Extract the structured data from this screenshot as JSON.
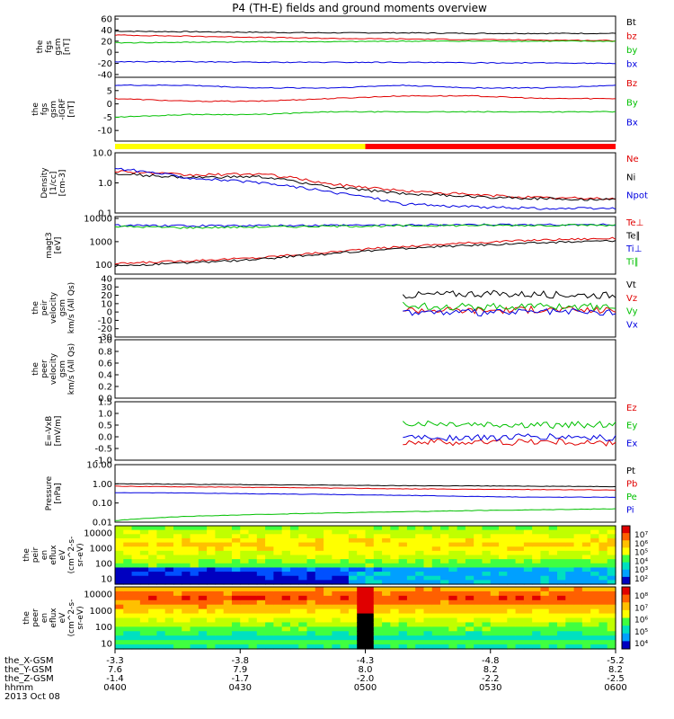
{
  "title": "P4 (TH-E) fields and ground moments overview",
  "chart_data": [
    {
      "type": "line",
      "ylabel": [
        "the",
        "fgs",
        "gsm",
        "[nT]"
      ],
      "ylim": [
        -45,
        65
      ],
      "yticks": [
        "60",
        "40",
        "20",
        "0",
        "-20",
        "-40"
      ],
      "ytick_values": [
        60,
        40,
        20,
        0,
        -20,
        -40
      ],
      "series": [
        {
          "name": "Bt",
          "color": "#000000",
          "values": [
            38,
            37,
            36,
            35,
            35,
            34,
            34,
            34
          ]
        },
        {
          "name": "bz",
          "color": "#e00000",
          "values": [
            31,
            29,
            27,
            25,
            24,
            23,
            22,
            21
          ]
        },
        {
          "name": "by",
          "color": "#00c000",
          "values": [
            17,
            18,
            19,
            19,
            20,
            20,
            20,
            20
          ]
        },
        {
          "name": "bx",
          "color": "#0000e0",
          "values": [
            -17,
            -17,
            -18,
            -18,
            -18,
            -19,
            -19,
            -20
          ]
        }
      ]
    },
    {
      "type": "line",
      "ylabel": [
        "the",
        "fgs",
        "gsm",
        "-IGRF",
        "[nT]"
      ],
      "ylim": [
        -14,
        10
      ],
      "yticks": [
        "5",
        "0",
        "-5",
        "-10"
      ],
      "ytick_values": [
        5,
        0,
        -5,
        -10
      ],
      "series": [
        {
          "name": "Bz",
          "color": "#e00000",
          "values": [
            2,
            1,
            1,
            2,
            3,
            3,
            2,
            2
          ]
        },
        {
          "name": "By",
          "color": "#00c000",
          "values": [
            -5,
            -4,
            -4,
            -3,
            -3,
            -3,
            -3,
            -3
          ]
        },
        {
          "name": "Bx",
          "color": "#0000e0",
          "values": [
            7,
            7,
            6,
            6,
            7,
            6,
            6,
            7
          ]
        }
      ]
    },
    {
      "type": "bar",
      "description_colors": [
        "#ffff00",
        "#ff0000"
      ],
      "segments": [
        {
          "from": "0400",
          "to": "0500",
          "color": "#ffff00"
        },
        {
          "from": "0500",
          "to": "0600",
          "color": "#ff0000"
        }
      ]
    },
    {
      "type": "line",
      "scale": "log",
      "ylabel": [
        "Density",
        "[1/cc]",
        "[cm-3]"
      ],
      "ylim": [
        0.1,
        10
      ],
      "yticks": [
        "10.0",
        "1.0",
        "0.1"
      ],
      "ytick_values": [
        10,
        1,
        0.1
      ],
      "series": [
        {
          "name": "Ne",
          "color": "#e00000",
          "values": [
            2.5,
            1.8,
            2.0,
            0.9,
            0.55,
            0.4,
            0.32,
            0.3
          ]
        },
        {
          "name": "Ni",
          "color": "#000000",
          "values": [
            2.0,
            1.5,
            1.6,
            0.7,
            0.45,
            0.35,
            0.3,
            0.28
          ]
        },
        {
          "name": "Npot",
          "color": "#0000e0",
          "values": [
            3.0,
            1.5,
            1.0,
            0.5,
            0.2,
            0.16,
            0.14,
            0.14
          ]
        }
      ]
    },
    {
      "type": "line",
      "scale": "log",
      "ylabel": [
        "magt3",
        "[eV]"
      ],
      "ylim": [
        40,
        12000
      ],
      "yticks": [
        "10000",
        "1000",
        "100"
      ],
      "ytick_values": [
        10000,
        1000,
        100
      ],
      "series": [
        {
          "name": "Te⊥",
          "color": "#e00000",
          "values": [
            110,
            150,
            200,
            350,
            600,
            900,
            1200,
            1400
          ]
        },
        {
          "name": "Te∥",
          "color": "#000000",
          "values": [
            90,
            120,
            170,
            300,
            500,
            700,
            900,
            1100
          ]
        },
        {
          "name": "Ti⊥",
          "color": "#0000e0",
          "values": [
            5000,
            4800,
            4900,
            5000,
            5200,
            5300,
            5400,
            5400
          ]
        },
        {
          "name": "Ti∥",
          "color": "#00c000",
          "values": [
            4500,
            4000,
            4300,
            4600,
            4800,
            5000,
            5100,
            5200
          ]
        }
      ]
    },
    {
      "type": "line",
      "ylabel": [
        "the",
        "peir",
        "velocity",
        "gsm",
        "km/s (All Qs)"
      ],
      "ylim": [
        -30,
        40
      ],
      "yticks": [
        "40",
        "30",
        "20",
        "10",
        "0",
        "-10",
        "-20",
        "-30"
      ],
      "ytick_values": [
        40,
        30,
        20,
        10,
        0,
        -10,
        -20,
        -30
      ],
      "series": [
        {
          "name": "Vt",
          "color": "#000000",
          "values": [
            null,
            null,
            null,
            null,
            20,
            22,
            21,
            20
          ]
        },
        {
          "name": "Vz",
          "color": "#e00000",
          "values": [
            null,
            null,
            null,
            null,
            3,
            2,
            3,
            2
          ]
        },
        {
          "name": "Vy",
          "color": "#00c000",
          "values": [
            null,
            null,
            null,
            null,
            8,
            6,
            7,
            6
          ]
        },
        {
          "name": "Vx",
          "color": "#0000e0",
          "values": [
            null,
            null,
            null,
            null,
            0,
            -1,
            0,
            -1
          ]
        }
      ]
    },
    {
      "type": "line",
      "ylabel": [
        "the",
        "peer",
        "velocity",
        "gsm",
        "km/s (All Qs)"
      ],
      "ylim": [
        0,
        1
      ],
      "yticks": [
        "1.0",
        "0.8",
        "0.6",
        "0.4",
        "0.2",
        "0.0"
      ],
      "ytick_values": [
        1.0,
        0.8,
        0.6,
        0.4,
        0.2,
        0.0
      ],
      "series": [
        {
          "name": "Vt",
          "color": "#000000",
          "values": []
        },
        {
          "name": "Vz",
          "color": "#e00000",
          "values": []
        },
        {
          "name": "Vy",
          "color": "#00c000",
          "values": []
        },
        {
          "name": "Vx",
          "color": "#0000e0",
          "values": []
        }
      ]
    },
    {
      "type": "line",
      "ylabel": [
        "E=-VxB",
        "[mV/m]"
      ],
      "ylim": [
        -1.0,
        1.5
      ],
      "yticks": [
        "1.5",
        "1.0",
        "0.5",
        "0.0",
        "-0.5",
        "-1.0"
      ],
      "ytick_values": [
        1.5,
        1.0,
        0.5,
        0.0,
        -0.5,
        -1.0
      ],
      "series": [
        {
          "name": "Ez",
          "color": "#e00000",
          "values": [
            null,
            null,
            null,
            null,
            -0.2,
            -0.25,
            -0.2,
            -0.3
          ]
        },
        {
          "name": "Ey",
          "color": "#00c000",
          "values": [
            null,
            null,
            null,
            null,
            0.6,
            0.55,
            0.5,
            0.55
          ]
        },
        {
          "name": "Ex",
          "color": "#0000e0",
          "values": [
            null,
            null,
            null,
            null,
            0.0,
            -0.05,
            0.0,
            -0.05
          ]
        }
      ]
    },
    {
      "type": "line",
      "scale": "log",
      "ylabel": [
        "Pressure",
        "[nPa]"
      ],
      "ylim": [
        0.01,
        10
      ],
      "yticks": [
        "10.00",
        "1.00",
        "0.10",
        "0.01"
      ],
      "ytick_values": [
        10,
        1,
        0.1,
        0.01
      ],
      "series": [
        {
          "name": "Pt",
          "color": "#000000",
          "values": [
            1.0,
            0.95,
            0.9,
            0.85,
            0.8,
            0.78,
            0.75,
            0.72
          ]
        },
        {
          "name": "Pb",
          "color": "#e00000",
          "values": [
            0.75,
            0.7,
            0.65,
            0.6,
            0.55,
            0.52,
            0.5,
            0.48
          ]
        },
        {
          "name": "Pe",
          "color": "#00c000",
          "values": [
            0.012,
            0.02,
            0.025,
            0.03,
            0.035,
            0.04,
            0.045,
            0.05
          ]
        },
        {
          "name": "Pi",
          "color": "#0000e0",
          "values": [
            0.35,
            0.33,
            0.3,
            0.28,
            0.25,
            0.22,
            0.2,
            0.2
          ]
        }
      ]
    },
    {
      "type": "heatmap",
      "ylabel": [
        "the",
        "peir",
        "en",
        "eflux",
        "eV",
        "(cm^2-s-",
        "sr-eV)"
      ],
      "yticks": [
        "10000",
        "1000",
        "100",
        "10"
      ],
      "ytick_values": [
        10000,
        1000,
        100,
        10
      ],
      "colorbar_ticks": [
        "10⁷",
        "10⁶",
        "10⁵",
        "10⁴",
        "10³",
        "10²"
      ]
    },
    {
      "type": "heatmap",
      "ylabel": [
        "the",
        "peer",
        "en",
        "eflux",
        "eV",
        "(cm^2-s-",
        "sr-eV)"
      ],
      "yticks": [
        "10000",
        "1000",
        "100",
        "10"
      ],
      "ytick_values": [
        10000,
        1000,
        100,
        10
      ],
      "colorbar_ticks": [
        "10⁸",
        "10⁷",
        "10⁶",
        "10⁵",
        "10⁴"
      ]
    }
  ],
  "xaxis": {
    "rows": [
      {
        "label": "the_X-GSM",
        "values": [
          "-3.3",
          "-3.8",
          "-4.3",
          "-4.8",
          "-5.2"
        ]
      },
      {
        "label": "the_Y-GSM",
        "values": [
          "7.6",
          "7.9",
          "8.0",
          "8.2",
          "8.2"
        ]
      },
      {
        "label": "the_Z-GSM",
        "values": [
          "-1.4",
          "-1.7",
          "-2.0",
          "-2.2",
          "-2.5"
        ]
      },
      {
        "label": "hhmm",
        "values": [
          "0400",
          "0430",
          "0500",
          "0530",
          "0600"
        ]
      }
    ],
    "date": "2013 Oct 08"
  }
}
